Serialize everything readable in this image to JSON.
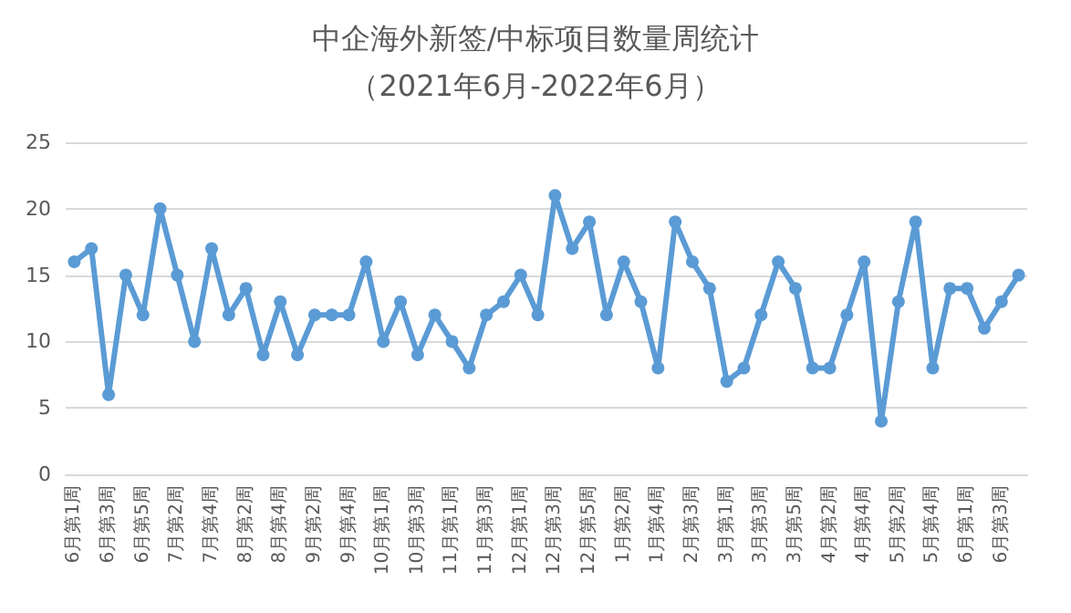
{
  "chart_data": {
    "type": "line",
    "title": "中企海外新签/中标项目数量周统计",
    "subtitle": "（2021年6月-2022年6月）",
    "categories": [
      "6月第1周",
      null,
      "6月第3周",
      null,
      "6月第5周",
      null,
      "7月第2周",
      null,
      "7月第4周",
      null,
      "8月第2周",
      null,
      "8月第4周",
      null,
      "9月第2周",
      null,
      "9月第4周",
      null,
      "10月第1周",
      null,
      "10月第3周",
      null,
      "11月第1周",
      null,
      "11月第3周",
      null,
      "12月第1周",
      null,
      "12月第3周",
      null,
      "12月第5周",
      null,
      "1月第2周",
      null,
      "1月第4周",
      null,
      "2月第3周",
      null,
      "3月第1周",
      null,
      "3月第3周",
      null,
      "3月第5周",
      null,
      "4月第2周",
      null,
      "4月第4周",
      null,
      "5月第2周",
      null,
      "5月第4周",
      null,
      "6月第1周",
      null,
      "6月第3周",
      null
    ],
    "series": [
      {
        "color": "#5b9bd5",
        "values": [
          16,
          17,
          6,
          15,
          12,
          20,
          15,
          10,
          17,
          12,
          14,
          9,
          13,
          9,
          12,
          12,
          12,
          16,
          10,
          13,
          9,
          12,
          10,
          8,
          12,
          13,
          15,
          12,
          21,
          17,
          19,
          12,
          16,
          13,
          8,
          19,
          16,
          14,
          7,
          8,
          12,
          16,
          14,
          8,
          8,
          12,
          16,
          4,
          13,
          19,
          8,
          14,
          14,
          11,
          13,
          15
        ]
      }
    ],
    "ylim": [
      0,
      25
    ],
    "yticks": [
      0,
      5,
      10,
      15,
      20,
      25
    ],
    "grid": "y",
    "marker": "circle",
    "line_style": "solid"
  }
}
